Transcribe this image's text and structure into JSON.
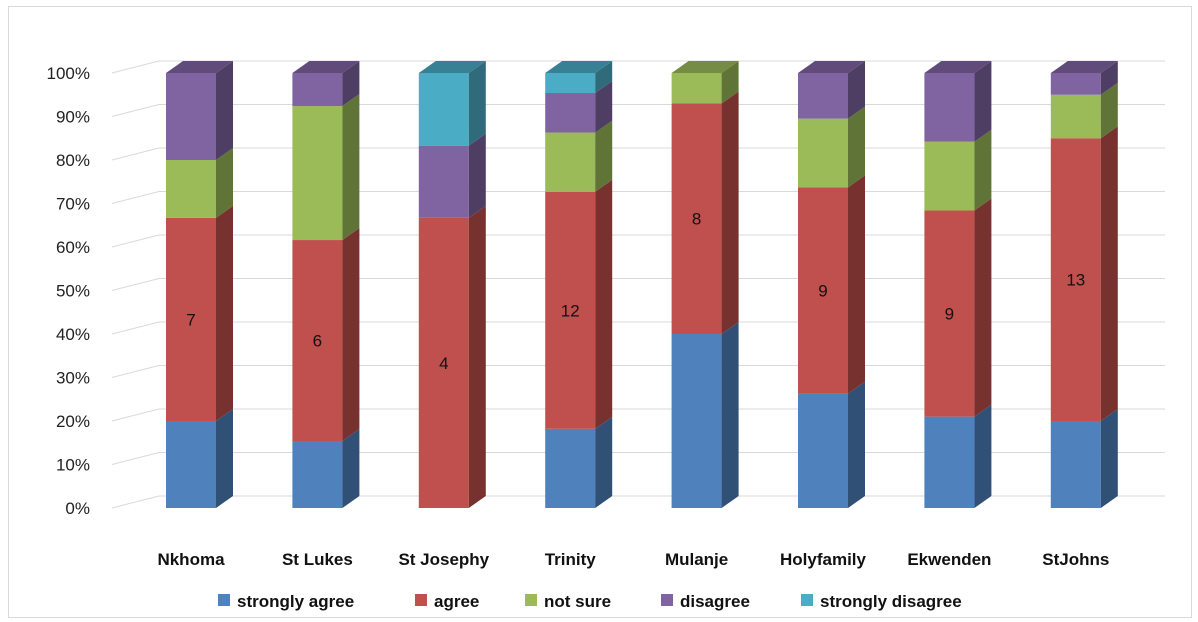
{
  "chart_data": {
    "type": "bar",
    "stacked": true,
    "percent": true,
    "categories": [
      "Nkhoma",
      "St Lukes",
      "St Josephy",
      "Trinity",
      "Mulanje",
      "Holyfamily",
      "Ekwenden",
      "StJohns"
    ],
    "series": [
      {
        "name": "strongly agree",
        "color": "#4f81bd",
        "values": [
          20,
          15.4,
          0,
          18.2,
          40,
          26.3,
          21,
          20
        ]
      },
      {
        "name": "agree",
        "color": "#c0504d",
        "values": [
          46.7,
          46.2,
          66.7,
          54.5,
          53,
          47.4,
          47.4,
          65
        ]
      },
      {
        "name": "not sure",
        "color": "#9bbb59",
        "values": [
          13.3,
          30.8,
          0,
          13.6,
          7,
          15.8,
          15.8,
          10
        ]
      },
      {
        "name": "disagree",
        "color": "#8064a2",
        "values": [
          20,
          7.6,
          16.6,
          9.1,
          0,
          10.5,
          15.8,
          5
        ]
      },
      {
        "name": "strongly disagree",
        "color": "#4bacc6",
        "values": [
          0,
          0,
          16.7,
          4.6,
          0,
          0,
          0,
          0
        ]
      }
    ],
    "data_labels": [
      "7",
      "6",
      "4",
      "12",
      "8",
      "9",
      "9",
      "13"
    ],
    "data_label_series": "agree",
    "y_ticks": [
      "0%",
      "10%",
      "20%",
      "30%",
      "40%",
      "50%",
      "60%",
      "70%",
      "80%",
      "90%",
      "100%"
    ],
    "ylim": [
      0,
      100
    ],
    "grid": true,
    "legend_position": "bottom"
  }
}
